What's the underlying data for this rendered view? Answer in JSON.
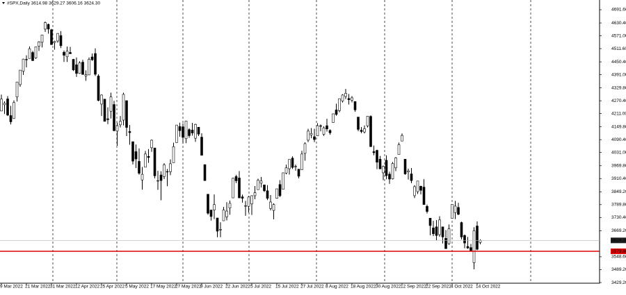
{
  "chart_data": {
    "type": "candlestick",
    "title": "#SPX,Daily  3614.98 3629.27 3606.16 3624.30",
    "categories": [
      "9 Mar 2022",
      null,
      null,
      null,
      null,
      null,
      null,
      null,
      "21 Mar 2022",
      null,
      null,
      null,
      null,
      null,
      null,
      null,
      "31 Mar 2022",
      null,
      null,
      null,
      null,
      null,
      null,
      null,
      "12 Apr 2022",
      null,
      null,
      null,
      null,
      null,
      null,
      null,
      "25 Apr 2022",
      null,
      null,
      null,
      null,
      null,
      null,
      null,
      "5 May 2022",
      null,
      null,
      null,
      null,
      null,
      null,
      null,
      "17 May 2022",
      null,
      null,
      null,
      null,
      null,
      null,
      null,
      "27 May 2022",
      null,
      null,
      null,
      null,
      null,
      null,
      null,
      "9 Jun 2022",
      null,
      null,
      null,
      null,
      null,
      null,
      null,
      "22 Jun 2022",
      null,
      null,
      null,
      null,
      null,
      null,
      null,
      "5 Jul 2022",
      null,
      null,
      null,
      null,
      null,
      null,
      null,
      "15 Jul 2022",
      null,
      null,
      null,
      null,
      null,
      null,
      null,
      "27 Jul 2022",
      null,
      null,
      null,
      null,
      null,
      null,
      null,
      "8 Aug 2022",
      null,
      null,
      null,
      null,
      null,
      null,
      null,
      "18 Aug 2022",
      null,
      null,
      null,
      null,
      null,
      null,
      null,
      "30 Aug 2022",
      null,
      null,
      null,
      null,
      null,
      null,
      null,
      "12 Sep 2022",
      null,
      null,
      null,
      null,
      null,
      null,
      null,
      "22 Sep 2022",
      null,
      null,
      null,
      null,
      null,
      null,
      null,
      "4 Oct 2022",
      null,
      null,
      null,
      null,
      null,
      null,
      null,
      "14 Oct 2022",
      null
    ],
    "ohlc": [
      [
        4223,
        4299,
        4223,
        4278
      ],
      [
        4252,
        4268,
        4209,
        4259
      ],
      [
        4279,
        4292,
        4200,
        4204
      ],
      [
        4202,
        4247,
        4161,
        4173
      ],
      [
        4188,
        4272,
        4187,
        4262
      ],
      [
        4288,
        4358,
        4267,
        4357
      ],
      [
        4345,
        4412,
        4335,
        4412
      ],
      [
        4407,
        4465,
        4390,
        4463
      ],
      [
        4462,
        4481,
        4425,
        4461
      ],
      [
        4466,
        4522,
        4466,
        4511
      ],
      [
        4494,
        4501,
        4455,
        4456
      ],
      [
        4469,
        4520,
        4465,
        4520
      ],
      [
        4523,
        4546,
        4501,
        4543
      ],
      [
        4541,
        4575,
        4517,
        4575
      ],
      [
        4602,
        4637,
        4589,
        4632
      ],
      [
        4624,
        4627,
        4581,
        4602
      ],
      [
        4599,
        4603,
        4530,
        4530
      ],
      [
        4540,
        4548,
        4507,
        4545
      ],
      [
        4547,
        4583,
        4539,
        4582
      ],
      [
        4572,
        4593,
        4514,
        4525
      ],
      [
        4495,
        4503,
        4450,
        4481
      ],
      [
        4474,
        4521,
        4450,
        4500
      ],
      [
        4494,
        4520,
        4487,
        4488
      ],
      [
        4462,
        4464,
        4408,
        4413
      ],
      [
        4437,
        4471,
        4381,
        4397
      ],
      [
        4397,
        4453,
        4395,
        4446
      ],
      [
        4449,
        4460,
        4392,
        4392
      ],
      [
        4385,
        4411,
        4363,
        4391
      ],
      [
        4390,
        4471,
        4390,
        4462
      ],
      [
        4473,
        4489,
        4455,
        4460
      ],
      [
        4489,
        4513,
        4385,
        4393
      ],
      [
        4385,
        4393,
        4268,
        4272
      ],
      [
        4255,
        4300,
        4200,
        4297
      ],
      [
        4278,
        4278,
        4175,
        4175
      ],
      [
        4187,
        4240,
        4162,
        4183
      ],
      [
        4222,
        4308,
        4188,
        4288
      ],
      [
        4253,
        4270,
        4129,
        4132
      ],
      [
        4130,
        4169,
        4062,
        4155
      ],
      [
        4159,
        4200,
        4147,
        4175
      ],
      [
        4181,
        4308,
        4156,
        4300
      ],
      [
        4271,
        4271,
        4107,
        4147
      ],
      [
        4128,
        4158,
        4067,
        4123
      ],
      [
        4081,
        4082,
        3976,
        3991
      ],
      [
        4035,
        4068,
        3959,
        4001
      ],
      [
        3990,
        4050,
        3928,
        3935
      ],
      [
        3904,
        3964,
        3859,
        3930
      ],
      [
        3963,
        4038,
        3963,
        4024
      ],
      [
        4013,
        4047,
        3983,
        4008
      ],
      [
        4053,
        4091,
        4034,
        4088
      ],
      [
        4052,
        4052,
        3911,
        3923
      ],
      [
        3900,
        3946,
        3858,
        3901
      ],
      [
        3927,
        3944,
        3810,
        3901
      ],
      [
        3920,
        3982,
        3908,
        3974
      ],
      [
        3943,
        3955,
        3875,
        3941
      ],
      [
        3942,
        3999,
        3926,
        3979
      ],
      [
        3984,
        4076,
        3984,
        4058
      ],
      [
        4077,
        4158,
        4077,
        4158
      ],
      [
        4151,
        4169,
        4104,
        4132
      ],
      [
        4150,
        4166,
        4073,
        4101
      ],
      [
        4095,
        4177,
        4074,
        4177
      ],
      [
        4137,
        4143,
        4099,
        4109
      ],
      [
        4135,
        4168,
        4109,
        4121
      ],
      [
        4097,
        4164,
        4080,
        4161
      ],
      [
        4148,
        4149,
        4107,
        4116
      ],
      [
        4102,
        4120,
        4017,
        4018
      ],
      [
        3975,
        3975,
        3900,
        3901
      ],
      [
        3838,
        3839,
        3743,
        3750
      ],
      [
        3765,
        3765,
        3716,
        3735
      ],
      [
        3765,
        3837,
        3723,
        3790
      ],
      [
        3728,
        3728,
        3639,
        3667
      ],
      [
        3675,
        3708,
        3639,
        3675
      ],
      [
        3715,
        3779,
        3715,
        3765
      ],
      [
        3733,
        3801,
        3717,
        3760
      ],
      [
        3774,
        3809,
        3743,
        3796
      ],
      [
        3821,
        3914,
        3821,
        3912
      ],
      [
        3920,
        3928,
        3889,
        3900
      ],
      [
        3913,
        3945,
        3820,
        3821
      ],
      [
        3826,
        3836,
        3799,
        3819
      ],
      [
        3785,
        3807,
        3738,
        3785
      ],
      [
        3782,
        3829,
        3753,
        3825
      ],
      [
        3793,
        3833,
        3742,
        3831
      ],
      [
        3831,
        3876,
        3815,
        3845
      ],
      [
        3859,
        3910,
        3859,
        3903
      ],
      [
        3889,
        3918,
        3869,
        3899
      ],
      [
        3881,
        3881,
        3848,
        3854
      ],
      [
        3854,
        3880,
        3811,
        3819
      ],
      [
        3772,
        3834,
        3763,
        3802
      ],
      [
        3763,
        3796,
        3722,
        3790
      ],
      [
        3819,
        3863,
        3817,
        3863
      ],
      [
        3883,
        3903,
        3825,
        3831
      ],
      [
        3861,
        3938,
        3861,
        3937
      ],
      [
        3936,
        3975,
        3930,
        3960
      ],
      [
        3956,
        3999,
        3929,
        3999
      ],
      [
        4005,
        4013,
        3955,
        3962
      ],
      [
        3966,
        3975,
        3947,
        3967
      ],
      [
        3954,
        3954,
        3911,
        3921
      ],
      [
        3951,
        4039,
        3951,
        4024
      ],
      [
        4027,
        4078,
        3993,
        4072
      ],
      [
        4088,
        4141,
        4079,
        4130
      ],
      [
        4112,
        4144,
        4097,
        4119
      ],
      [
        4104,
        4141,
        4079,
        4091
      ],
      [
        4108,
        4167,
        4107,
        4155
      ],
      [
        4155,
        4161,
        4129,
        4152
      ],
      [
        4115,
        4152,
        4108,
        4145
      ],
      [
        4155,
        4187,
        4128,
        4140
      ],
      [
        4133,
        4138,
        4113,
        4122
      ],
      [
        4170,
        4211,
        4169,
        4210
      ],
      [
        4228,
        4257,
        4201,
        4207
      ],
      [
        4225,
        4280,
        4217,
        4280
      ],
      [
        4269,
        4301,
        4262,
        4297
      ],
      [
        4290,
        4325,
        4278,
        4305
      ],
      [
        4281,
        4302,
        4253,
        4275
      ],
      [
        4273,
        4292,
        4263,
        4284
      ],
      [
        4267,
        4267,
        4219,
        4228
      ],
      [
        4195,
        4195,
        4129,
        4138
      ],
      [
        4134,
        4149,
        4120,
        4128
      ],
      [
        4126,
        4156,
        4119,
        4141
      ],
      [
        4154,
        4200,
        4147,
        4199
      ],
      [
        4198,
        4203,
        4057,
        4058
      ],
      [
        4035,
        4063,
        4018,
        4030
      ],
      [
        4041,
        4044,
        3954,
        3986
      ],
      [
        4000,
        4015,
        3955,
        3955
      ],
      [
        3937,
        3970,
        3903,
        3967
      ],
      [
        3995,
        4018,
        3907,
        3924
      ],
      [
        3931,
        3942,
        3886,
        3908
      ],
      [
        3909,
        3987,
        3906,
        3980
      ],
      [
        3960,
        4010,
        3945,
        4006
      ],
      [
        4022,
        4077,
        4022,
        4067
      ],
      [
        4084,
        4119,
        4084,
        4110
      ],
      [
        4000,
        4000,
        3928,
        3932
      ],
      [
        3941,
        3956,
        3906,
        3946
      ],
      [
        3932,
        3959,
        3889,
        3901
      ],
      [
        3831,
        3880,
        3820,
        3873
      ],
      [
        3850,
        3900,
        3839,
        3899
      ],
      [
        3875,
        3877,
        3837,
        3856
      ],
      [
        3871,
        3907,
        3789,
        3790
      ],
      [
        3782,
        3790,
        3749,
        3758
      ],
      [
        3727,
        3727,
        3648,
        3693
      ],
      [
        3682,
        3715,
        3644,
        3655
      ],
      [
        3687,
        3718,
        3624,
        3647
      ],
      [
        3651,
        3736,
        3641,
        3719
      ],
      [
        3687,
        3687,
        3610,
        3640
      ],
      [
        3634,
        3672,
        3585,
        3586
      ],
      [
        3609,
        3698,
        3604,
        3678
      ],
      [
        3726,
        3791,
        3726,
        3791
      ],
      [
        3753,
        3807,
        3723,
        3783
      ],
      [
        3777,
        3798,
        3741,
        3745
      ],
      [
        3707,
        3711,
        3629,
        3640
      ],
      [
        3647,
        3652,
        3588,
        3612
      ],
      [
        3596,
        3640,
        3585,
        3589
      ],
      [
        3591,
        3608,
        3573,
        3577
      ],
      [
        3521,
        3685,
        3491,
        3669
      ],
      [
        3691,
        3712,
        3579,
        3583
      ],
      [
        3614.98,
        3629.27,
        3606.16,
        3624.3
      ]
    ],
    "ylim": [
      3426.2,
      4736.6
    ],
    "yticks": [
      {
        "value": 4691.6,
        "label": "4691.60"
      },
      {
        "value": 4630.4,
        "label": "4630.40"
      },
      {
        "value": 4571,
        "label": "4571.00"
      },
      {
        "value": 4511.6,
        "label": "4511.60"
      },
      {
        "value": 4450.4,
        "label": "4450.40"
      },
      {
        "value": 4391,
        "label": "4391.00"
      },
      {
        "value": 4329.8,
        "label": "4329.80"
      },
      {
        "value": 4270.4,
        "label": "4270.40"
      },
      {
        "value": 4211,
        "label": "4211.00"
      },
      {
        "value": 4149.8,
        "label": "4149.80"
      },
      {
        "value": 4090.4,
        "label": "4090.40"
      },
      {
        "value": 4031,
        "label": "4031.00"
      },
      {
        "value": 3969.8,
        "label": "3969.80"
      },
      {
        "value": 3910.4,
        "label": "3910.40"
      },
      {
        "value": 3849.2,
        "label": "3849.20"
      },
      {
        "value": 3789.8,
        "label": "3789.80"
      },
      {
        "value": 3730.4,
        "label": "3730.40"
      },
      {
        "value": 3669.2,
        "label": "3669.20"
      },
      {
        "value": 3548.6,
        "label": "3548.60"
      },
      {
        "value": 3489.2,
        "label": "3489.20"
      },
      {
        "value": 3429.2,
        "label": "3429.20"
      }
    ],
    "price_labels": [
      {
        "value": 3624.3,
        "label": "3624.30",
        "color": "#b8b8b8",
        "box": "#202020"
      },
      {
        "value": 3573.8,
        "label": "3573.80",
        "color": "#e00000",
        "box": "#e00000"
      }
    ],
    "up_color": "#ffffff",
    "down_color": "#000000",
    "line_color": "#000000"
  }
}
